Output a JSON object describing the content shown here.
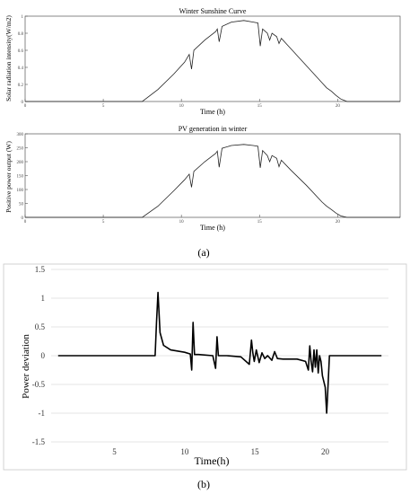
{
  "chart_data": [
    {
      "type": "line",
      "title": "Winter Sunshine Curve",
      "xlabel": "Time (h)",
      "ylabel": "Solar radiation intensity(W/m2)",
      "xlim": [
        0,
        24
      ],
      "ylim": [
        0,
        1
      ],
      "x_ticks": [
        "0",
        "5",
        "10",
        "15",
        "20"
      ],
      "y_ticks": [
        "0",
        "0.2",
        "0.4",
        "0.6",
        "0.8",
        "1"
      ],
      "series": [
        {
          "x": [
            7.5,
            8.5,
            9.5,
            10.2,
            10.5,
            10.65,
            10.8,
            11.5,
            12.2,
            12.3,
            12.42,
            12.6,
            13.2,
            14,
            14.6,
            14.9,
            15.05,
            15.2,
            15.5,
            15.65,
            15.8,
            16.1,
            16.25,
            16.4,
            17,
            18,
            19,
            19.3,
            19.6,
            19.9,
            20.2,
            20.6
          ],
          "y": [
            0,
            0.14,
            0.32,
            0.46,
            0.55,
            0.38,
            0.6,
            0.72,
            0.82,
            0.85,
            0.7,
            0.88,
            0.93,
            0.95,
            0.93,
            0.92,
            0.65,
            0.85,
            0.8,
            0.72,
            0.8,
            0.76,
            0.68,
            0.74,
            0.62,
            0.42,
            0.22,
            0.16,
            0.12,
            0.07,
            0.03,
            0
          ]
        }
      ]
    },
    {
      "type": "line",
      "title": "PV generation in winter",
      "xlabel": "Time (h)",
      "ylabel": "Positive power output (W)",
      "xlim": [
        0,
        24
      ],
      "ylim": [
        0,
        300
      ],
      "x_ticks": [
        "0",
        "5",
        "10",
        "15",
        "20"
      ],
      "y_ticks": [
        "0",
        "50",
        "100",
        "150",
        "200",
        "250",
        "300"
      ],
      "series": [
        {
          "x": [
            7.5,
            8.5,
            9.5,
            10.2,
            10.5,
            10.65,
            10.8,
            11.5,
            12.2,
            12.3,
            12.42,
            12.6,
            13.2,
            14,
            14.6,
            14.9,
            15.05,
            15.2,
            15.5,
            15.65,
            15.8,
            16.1,
            16.25,
            16.4,
            17,
            18,
            19,
            19.3,
            19.6,
            19.9,
            20.2,
            20.6
          ],
          "y": [
            0,
            40,
            95,
            135,
            155,
            108,
            165,
            200,
            230,
            238,
            180,
            248,
            258,
            262,
            258,
            255,
            178,
            240,
            222,
            200,
            222,
            212,
            182,
            205,
            170,
            115,
            55,
            40,
            28,
            15,
            5,
            0
          ]
        }
      ]
    },
    {
      "type": "line",
      "title": "",
      "xlabel": "Time(h)",
      "ylabel": "Power deviation",
      "xlim": [
        0.5,
        24.5
      ],
      "ylim": [
        -1.5,
        1.5
      ],
      "x_ticks": [
        "5",
        "10",
        "15",
        "20"
      ],
      "y_ticks": [
        "-1.5",
        "-1",
        "-0.5",
        "0",
        "0.5",
        "1",
        "1.5"
      ],
      "series": [
        {
          "x": [
            1,
            7.9,
            8.0,
            8.1,
            8.25,
            8.5,
            9,
            10,
            10.4,
            10.5,
            10.6,
            10.7,
            11,
            12,
            12.2,
            12.3,
            12.4,
            12.5,
            13,
            14,
            14.6,
            14.75,
            14.85,
            14.95,
            15.1,
            15.3,
            15.5,
            15.7,
            15.9,
            16.2,
            16.4,
            16.6,
            17,
            18,
            18.6,
            18.8,
            18.9,
            19.0,
            19.1,
            19.2,
            19.3,
            19.4,
            19.5,
            19.6,
            19.7,
            19.8,
            20.0,
            20.1,
            20.15,
            20.3,
            21,
            24
          ],
          "y": [
            0,
            0,
            0.6,
            1.1,
            0.4,
            0.18,
            0.1,
            0.06,
            0.03,
            -0.25,
            0.58,
            0.02,
            0.02,
            0,
            -0.22,
            0.33,
            0,
            0,
            0,
            -0.02,
            -0.15,
            0.27,
            0.05,
            -0.1,
            0.1,
            -0.12,
            0.05,
            -0.05,
            0,
            -0.08,
            0.07,
            -0.05,
            -0.06,
            -0.06,
            -0.1,
            -0.25,
            0.17,
            -0.1,
            -0.28,
            0.1,
            -0.2,
            0.1,
            -0.3,
            0,
            -0.1,
            -0.35,
            -0.55,
            -1.0,
            -0.8,
            0,
            0,
            0
          ]
        }
      ]
    }
  ],
  "captions": {
    "a": "(a)",
    "b": "(b)"
  }
}
